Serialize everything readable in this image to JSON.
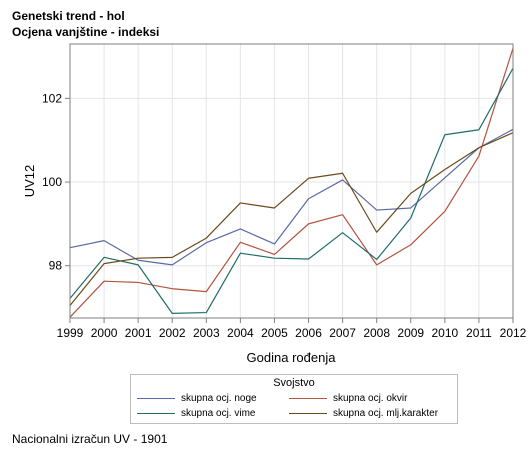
{
  "title": "Genetski trend - hol",
  "subtitle": "Ocjena vanjštine - indeksi",
  "footnote": "Nacionalni izračun UV - 1901",
  "chart_data": {
    "type": "line",
    "xlabel": "Godina rođenja",
    "ylabel": "UV12",
    "x": [
      1999,
      2000,
      2001,
      2002,
      2003,
      2004,
      2005,
      2006,
      2007,
      2008,
      2009,
      2010,
      2011,
      2012
    ],
    "xlim": [
      1999,
      2012
    ],
    "ylim": [
      96.75,
      103.3
    ],
    "yticks": [
      98,
      100,
      102
    ],
    "grid": true,
    "legend": {
      "title": "Svojstvo",
      "placement": "bottom"
    },
    "series": [
      {
        "name": "skupna ocj. noge",
        "color": "#5a6aa6",
        "values": [
          98.43,
          98.6,
          98.13,
          98.02,
          98.55,
          98.88,
          98.52,
          99.6,
          100.05,
          99.33,
          99.38,
          100.1,
          100.82,
          101.26
        ]
      },
      {
        "name": "skupna ocj. okvir",
        "color": "#b2543e",
        "values": [
          96.77,
          97.63,
          97.6,
          97.45,
          97.38,
          98.56,
          98.27,
          99.0,
          99.22,
          98.02,
          98.5,
          99.3,
          100.62,
          103.2
        ]
      },
      {
        "name": "skupna ocj. vime",
        "color": "#1e6e68",
        "values": [
          97.22,
          98.2,
          98.02,
          96.86,
          96.88,
          98.3,
          98.18,
          98.16,
          98.79,
          98.15,
          99.14,
          101.13,
          101.25,
          102.72
        ]
      },
      {
        "name": "skupna ocj. mlj.karakter",
        "color": "#6b4a1c",
        "values": [
          97.05,
          98.05,
          98.18,
          98.2,
          98.66,
          99.5,
          99.38,
          100.09,
          100.21,
          98.8,
          99.73,
          100.3,
          100.82,
          101.18
        ]
      }
    ]
  }
}
